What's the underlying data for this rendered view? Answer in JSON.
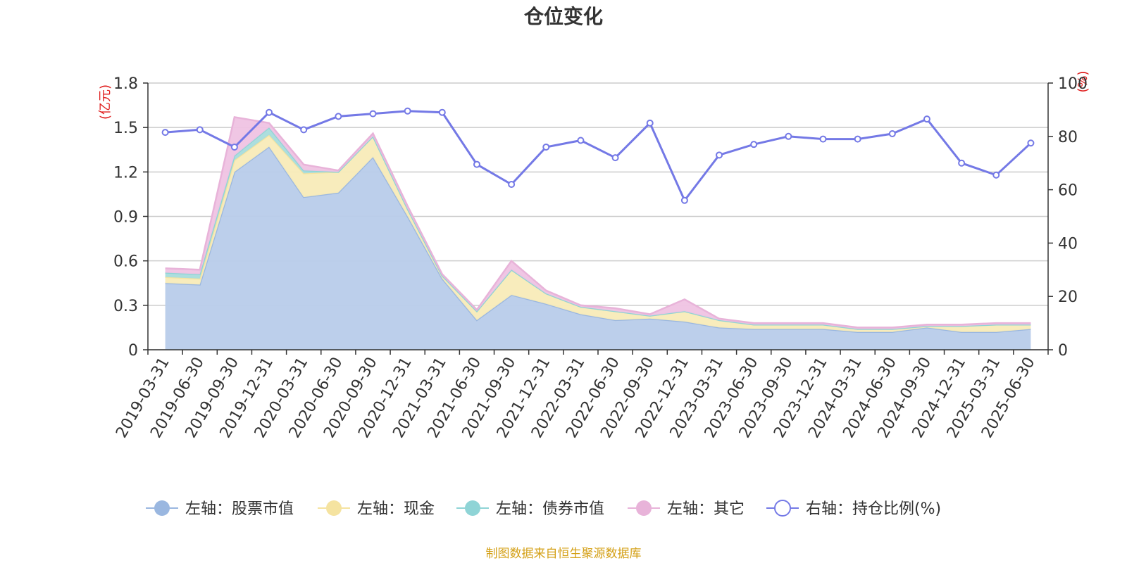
{
  "chart_data": {
    "type": "area",
    "title": "仓位变化",
    "left_axis_unit": "(亿元)",
    "right_axis_unit": "(%)",
    "left_ylim": [
      0,
      1.8
    ],
    "left_ticks": [
      "0",
      "0.3",
      "0.6",
      "0.9",
      "1.2",
      "1.5",
      "1.8"
    ],
    "right_ylim": [
      0,
      100
    ],
    "right_ticks": [
      "0",
      "20",
      "40",
      "60",
      "80",
      "100"
    ],
    "grid": true,
    "legend_position": "bottom",
    "categories": [
      "2019-03-31",
      "2019-06-30",
      "2019-09-30",
      "2019-12-31",
      "2020-03-31",
      "2020-06-30",
      "2020-09-30",
      "2020-12-31",
      "2021-03-31",
      "2021-06-30",
      "2021-09-30",
      "2021-12-31",
      "2022-03-31",
      "2022-06-30",
      "2022-09-30",
      "2022-12-31",
      "2023-03-31",
      "2023-06-30",
      "2023-09-30",
      "2023-12-31",
      "2024-03-31",
      "2024-06-30",
      "2024-09-30",
      "2024-12-31",
      "2025-03-31",
      "2025-06-30"
    ],
    "stacked_series": [
      {
        "name": "左轴：股票市值",
        "color": "#9ab7e0",
        "fill": "#b8ccea",
        "values": [
          0.45,
          0.44,
          1.2,
          1.37,
          1.03,
          1.06,
          1.3,
          0.9,
          0.48,
          0.2,
          0.37,
          0.31,
          0.24,
          0.2,
          0.21,
          0.19,
          0.15,
          0.14,
          0.14,
          0.14,
          0.12,
          0.12,
          0.15,
          0.12,
          0.12,
          0.14
        ]
      },
      {
        "name": "左轴：现金",
        "color": "#f5e3a0",
        "fill": "#f8ebb8",
        "values": [
          0.04,
          0.04,
          0.08,
          0.08,
          0.16,
          0.14,
          0.14,
          0.05,
          0.02,
          0.06,
          0.17,
          0.07,
          0.05,
          0.06,
          0.02,
          0.07,
          0.05,
          0.03,
          0.03,
          0.03,
          0.02,
          0.02,
          0.01,
          0.04,
          0.05,
          0.03
        ]
      },
      {
        "name": "左轴：债券市值",
        "color": "#8fd4d6",
        "fill": "#a8dcdc",
        "values": [
          0.03,
          0.03,
          0.03,
          0.05,
          0.02,
          0,
          0,
          0,
          0,
          0,
          0,
          0,
          0,
          0,
          0,
          0,
          0,
          0,
          0,
          0,
          0,
          0,
          0,
          0,
          0,
          0
        ]
      },
      {
        "name": "左轴：其它",
        "color": "#e8b3d9",
        "fill": "#efc3e3",
        "values": [
          0.03,
          0.03,
          0.26,
          0.03,
          0.04,
          0.01,
          0.02,
          0.02,
          0.01,
          0.01,
          0.06,
          0.02,
          0.01,
          0.02,
          0.01,
          0.08,
          0.01,
          0.01,
          0.01,
          0.01,
          0.01,
          0.01,
          0.01,
          0.01,
          0.01,
          0.01
        ]
      }
    ],
    "line_series": {
      "name": "右轴：持仓比例(%)",
      "color": "#7479e6",
      "values": [
        81.5,
        82.5,
        76,
        89,
        82.5,
        87.5,
        88.5,
        89.5,
        89,
        69.5,
        62,
        76,
        78.5,
        72,
        85,
        56,
        73,
        77,
        80,
        79,
        79,
        81,
        86.5,
        70,
        65.5,
        77.5
      ]
    },
    "source_note": "制图数据来自恒生聚源数据库"
  }
}
